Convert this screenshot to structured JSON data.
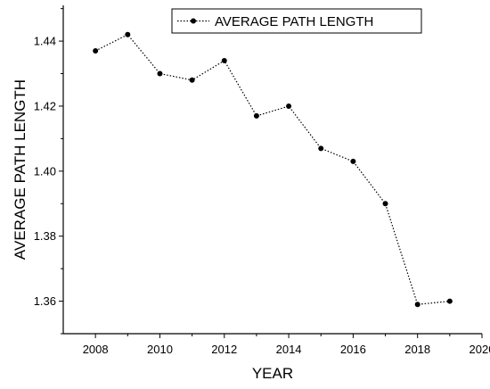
{
  "chart_data": {
    "type": "line",
    "xlabel": "YEAR",
    "ylabel": "AVERAGE PATH LENGTH",
    "xlim": [
      2007,
      2020
    ],
    "ylim": [
      1.35,
      1.451
    ],
    "xticks": [
      2008,
      2010,
      2012,
      2014,
      2016,
      2018,
      2020
    ],
    "yticks": [
      1.36,
      1.38,
      1.4,
      1.42,
      1.44
    ],
    "ytick_labels": [
      "1.36",
      "1.38",
      "1.40",
      "1.42",
      "1.44"
    ],
    "legend_position": "top-right",
    "series": [
      {
        "name": "AVERAGE PATH LENGTH",
        "line_style": "dotted",
        "marker": "circle",
        "color": "#000000",
        "x": [
          2008,
          2009,
          2010,
          2011,
          2012,
          2013,
          2014,
          2015,
          2016,
          2017,
          2018,
          2019
        ],
        "values": [
          1.437,
          1.442,
          1.43,
          1.428,
          1.434,
          1.417,
          1.42,
          1.407,
          1.403,
          1.39,
          1.359,
          1.36
        ]
      }
    ]
  }
}
